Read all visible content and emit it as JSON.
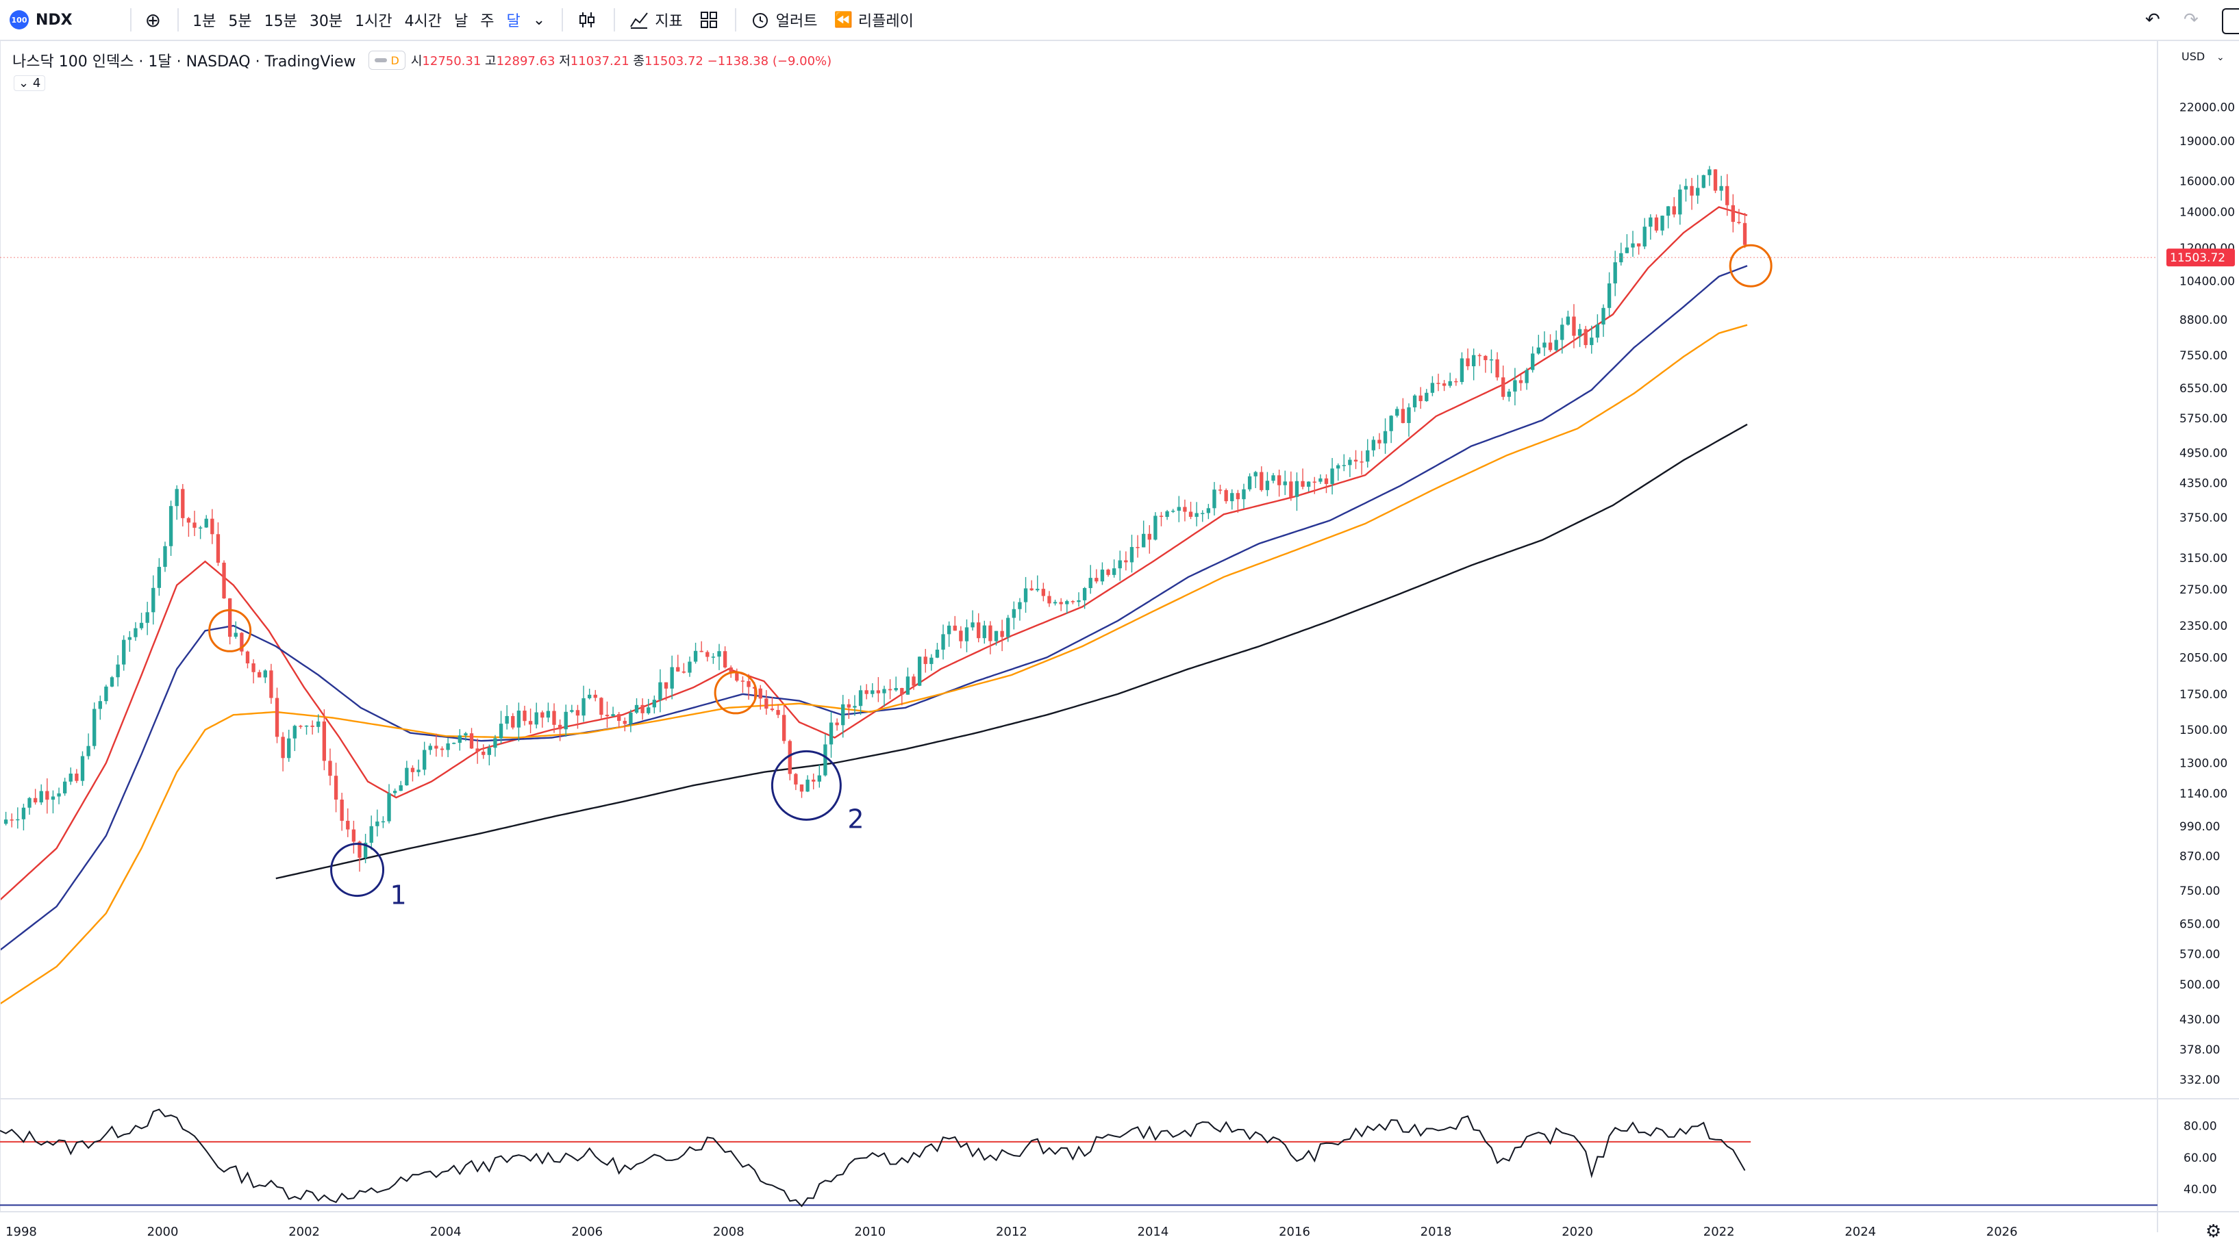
{
  "toolbar": {
    "symbol": "NDX",
    "symbol_badge": "100",
    "intervals": [
      "1분",
      "5분",
      "15분",
      "30분",
      "1시간",
      "4시간",
      "날",
      "주",
      "달"
    ],
    "active_interval": "달",
    "indicators_label": "지표",
    "alert_label": "얼러트",
    "replay_label": "리플레이"
  },
  "legend": {
    "title": "나스닥 100 인덱스 · 1달 · NASDAQ · TradingView",
    "open_label": "시",
    "open": "12750.31",
    "high_label": "고",
    "high": "12897.63",
    "low_label": "저",
    "low": "11037.21",
    "close_label": "종",
    "close": "11503.72",
    "change": "−1138.38 (−9.00%)",
    "badge": "D",
    "collapsed_count": "4"
  },
  "colors": {
    "up": "#26a69a",
    "down": "#ef5350",
    "ma_red": "#e53935",
    "ma_blue": "#283593",
    "ma_orange": "#ff9800",
    "ma_black": "#131722",
    "annot_orange": "#ef6c00",
    "annot_blue": "#1a237e"
  },
  "chart_data": {
    "type": "candlestick",
    "scale": "log",
    "currency": "USD",
    "price_ticks": [
      22000,
      19000,
      16000,
      14000,
      12000,
      10400,
      8800,
      7550,
      6550,
      5750,
      4950,
      4350,
      3750,
      3150,
      2750,
      2350,
      2050,
      1750,
      1500,
      1300,
      1140,
      990,
      870,
      750,
      650,
      570,
      500,
      430,
      378,
      332
    ],
    "price_tick_labels": [
      "22000.00",
      "19000.00",
      "16000.00",
      "14000.00",
      "12000.00",
      "10400.00",
      "8800.00",
      "7550.00",
      "6550.00",
      "5750.00",
      "4950.00",
      "4350.00",
      "3750.00",
      "3150.00",
      "2750.00",
      "2350.00",
      "2050.00",
      "1750.00",
      "1500.00",
      "1300.00",
      "1140.00",
      "990.00",
      "870.00",
      "750.00",
      "650.00",
      "570.00",
      "500.00",
      "430.00",
      "378.00",
      "332.00"
    ],
    "ylim": [
      310,
      26000
    ],
    "xlim": [
      1997.7,
      2028.2
    ],
    "x_ticks": [
      1998,
      2000,
      2002,
      2004,
      2006,
      2008,
      2010,
      2012,
      2014,
      2016,
      2018,
      2020,
      2022,
      2024,
      2026
    ],
    "last_price": 11503.72,
    "last_price_label": "11503.72",
    "close_anchors": [
      [
        1997.7,
        1000
      ],
      [
        1998.3,
        1150
      ],
      [
        1998.8,
        1200
      ],
      [
        1999.0,
        1550
      ],
      [
        1999.5,
        2200
      ],
      [
        1999.9,
        2700
      ],
      [
        2000.15,
        4300
      ],
      [
        2000.4,
        3600
      ],
      [
        2000.7,
        3600
      ],
      [
        2000.9,
        2400
      ],
      [
        2001.2,
        2000
      ],
      [
        2001.5,
        1900
      ],
      [
        2001.7,
        1300
      ],
      [
        2001.9,
        1600
      ],
      [
        2002.2,
        1500
      ],
      [
        2002.5,
        1050
      ],
      [
        2002.75,
        850
      ],
      [
        2003.0,
        1000
      ],
      [
        2003.5,
        1250
      ],
      [
        2004.0,
        1450
      ],
      [
        2004.6,
        1400
      ],
      [
        2005.0,
        1600
      ],
      [
        2005.6,
        1550
      ],
      [
        2006.0,
        1700
      ],
      [
        2006.5,
        1550
      ],
      [
        2007.0,
        1800
      ],
      [
        2007.8,
        2150
      ],
      [
        2008.3,
        1800
      ],
      [
        2008.7,
        1600
      ],
      [
        2008.9,
        1150
      ],
      [
        2009.2,
        1200
      ],
      [
        2009.5,
        1550
      ],
      [
        2010.0,
        1850
      ],
      [
        2010.5,
        1800
      ],
      [
        2011.0,
        2250
      ],
      [
        2011.6,
        2300
      ],
      [
        2011.8,
        2200
      ],
      [
        2012.2,
        2700
      ],
      [
        2012.8,
        2650
      ],
      [
        2013.5,
        3000
      ],
      [
        2014.0,
        3600
      ],
      [
        2014.7,
        4000
      ],
      [
        2015.5,
        4400
      ],
      [
        2016.1,
        4200
      ],
      [
        2016.6,
        4600
      ],
      [
        2017.0,
        5000
      ],
      [
        2017.7,
        6200
      ],
      [
        2018.4,
        7200
      ],
      [
        2018.8,
        7300
      ],
      [
        2018.98,
        6400
      ],
      [
        2019.4,
        7600
      ],
      [
        2019.9,
        8700
      ],
      [
        2020.15,
        7800
      ],
      [
        2020.4,
        10000
      ],
      [
        2020.7,
        12000
      ],
      [
        2021.0,
        13000
      ],
      [
        2021.5,
        15000
      ],
      [
        2021.9,
        16300
      ],
      [
        2022.1,
        14800
      ],
      [
        2022.3,
        12700
      ],
      [
        2022.4,
        11500
      ]
    ],
    "moving_averages": [
      {
        "key": "ma_red",
        "anchors": [
          [
            1997.7,
            720
          ],
          [
            1998.5,
            900
          ],
          [
            1999.2,
            1300
          ],
          [
            1999.7,
            1900
          ],
          [
            2000.2,
            2800
          ],
          [
            2000.6,
            3100
          ],
          [
            2001.0,
            2800
          ],
          [
            2001.5,
            2300
          ],
          [
            2002.0,
            1800
          ],
          [
            2002.5,
            1450
          ],
          [
            2002.9,
            1200
          ],
          [
            2003.3,
            1120
          ],
          [
            2003.8,
            1200
          ],
          [
            2004.5,
            1380
          ],
          [
            2005.5,
            1500
          ],
          [
            2006.5,
            1600
          ],
          [
            2007.5,
            1800
          ],
          [
            2008.0,
            1950
          ],
          [
            2008.5,
            1850
          ],
          [
            2009.0,
            1550
          ],
          [
            2009.5,
            1450
          ],
          [
            2010.0,
            1600
          ],
          [
            2011.0,
            1950
          ],
          [
            2012.0,
            2250
          ],
          [
            2013.0,
            2550
          ],
          [
            2014.0,
            3100
          ],
          [
            2015.0,
            3800
          ],
          [
            2016.0,
            4100
          ],
          [
            2017.0,
            4500
          ],
          [
            2018.0,
            5800
          ],
          [
            2019.0,
            6700
          ],
          [
            2019.8,
            7800
          ],
          [
            2020.5,
            9000
          ],
          [
            2021.0,
            11000
          ],
          [
            2021.5,
            12800
          ],
          [
            2022.0,
            14300
          ],
          [
            2022.4,
            13800
          ]
        ]
      },
      {
        "key": "ma_blue",
        "anchors": [
          [
            1997.7,
            580
          ],
          [
            1998.5,
            700
          ],
          [
            1999.2,
            950
          ],
          [
            1999.7,
            1350
          ],
          [
            2000.2,
            1950
          ],
          [
            2000.6,
            2300
          ],
          [
            2001.0,
            2350
          ],
          [
            2001.6,
            2150
          ],
          [
            2002.2,
            1900
          ],
          [
            2002.8,
            1650
          ],
          [
            2003.5,
            1480
          ],
          [
            2004.5,
            1430
          ],
          [
            2005.5,
            1450
          ],
          [
            2006.5,
            1520
          ],
          [
            2007.5,
            1650
          ],
          [
            2008.2,
            1750
          ],
          [
            2009.0,
            1700
          ],
          [
            2009.6,
            1600
          ],
          [
            2010.5,
            1650
          ],
          [
            2011.5,
            1850
          ],
          [
            2012.5,
            2050
          ],
          [
            2013.5,
            2400
          ],
          [
            2014.5,
            2900
          ],
          [
            2015.5,
            3350
          ],
          [
            2016.5,
            3700
          ],
          [
            2017.5,
            4300
          ],
          [
            2018.5,
            5100
          ],
          [
            2019.5,
            5700
          ],
          [
            2020.2,
            6500
          ],
          [
            2020.8,
            7800
          ],
          [
            2021.5,
            9300
          ],
          [
            2022.0,
            10600
          ],
          [
            2022.4,
            11100
          ]
        ]
      },
      {
        "key": "ma_orange",
        "anchors": [
          [
            1997.7,
            460
          ],
          [
            1998.5,
            540
          ],
          [
            1999.2,
            680
          ],
          [
            1999.7,
            900
          ],
          [
            2000.2,
            1250
          ],
          [
            2000.6,
            1500
          ],
          [
            2001.0,
            1600
          ],
          [
            2001.6,
            1620
          ],
          [
            2002.4,
            1580
          ],
          [
            2003.2,
            1520
          ],
          [
            2004.0,
            1460
          ],
          [
            2005.0,
            1450
          ],
          [
            2006.0,
            1480
          ],
          [
            2007.0,
            1560
          ],
          [
            2008.0,
            1650
          ],
          [
            2009.0,
            1680
          ],
          [
            2010.0,
            1620
          ],
          [
            2011.0,
            1750
          ],
          [
            2012.0,
            1900
          ],
          [
            2013.0,
            2150
          ],
          [
            2014.0,
            2500
          ],
          [
            2015.0,
            2900
          ],
          [
            2016.0,
            3250
          ],
          [
            2017.0,
            3650
          ],
          [
            2018.0,
            4250
          ],
          [
            2019.0,
            4900
          ],
          [
            2020.0,
            5500
          ],
          [
            2020.8,
            6400
          ],
          [
            2021.5,
            7500
          ],
          [
            2022.0,
            8300
          ],
          [
            2022.4,
            8600
          ]
        ]
      },
      {
        "key": "ma_black",
        "anchors": [
          [
            2001.6,
            790
          ],
          [
            2002.5,
            840
          ],
          [
            2003.5,
            900
          ],
          [
            2004.5,
            960
          ],
          [
            2005.5,
            1030
          ],
          [
            2006.5,
            1100
          ],
          [
            2007.5,
            1180
          ],
          [
            2008.5,
            1250
          ],
          [
            2009.5,
            1300
          ],
          [
            2010.5,
            1380
          ],
          [
            2011.5,
            1480
          ],
          [
            2012.5,
            1600
          ],
          [
            2013.5,
            1750
          ],
          [
            2014.5,
            1950
          ],
          [
            2015.5,
            2150
          ],
          [
            2016.5,
            2400
          ],
          [
            2017.5,
            2700
          ],
          [
            2018.5,
            3050
          ],
          [
            2019.5,
            3400
          ],
          [
            2020.5,
            3950
          ],
          [
            2021.5,
            4800
          ],
          [
            2022.4,
            5600
          ]
        ]
      }
    ],
    "annotations": [
      {
        "type": "circle",
        "color_key": "annot_orange",
        "x": 2000.95,
        "y": 2300
      },
      {
        "type": "circle",
        "color_key": "annot_orange",
        "x": 2008.1,
        "y": 1760
      },
      {
        "type": "circle",
        "color_key": "annot_orange",
        "x": 2022.45,
        "y": 11100
      },
      {
        "type": "circle",
        "color_key": "annot_blue",
        "x": 2002.75,
        "y": 820,
        "label": "1"
      },
      {
        "type": "circle",
        "color_key": "annot_blue",
        "x": 2009.1,
        "y": 1180,
        "label": "2"
      }
    ],
    "rsi": {
      "ticks": [
        80,
        60,
        40
      ],
      "tick_labels": [
        "80.00",
        "60.00",
        "40.00"
      ],
      "ylim": [
        28,
        95
      ],
      "upper_band": 70,
      "lower_band": 30,
      "anchors": [
        [
          1997.7,
          75
        ],
        [
          1998.3,
          72
        ],
        [
          1998.7,
          66
        ],
        [
          1999.2,
          74
        ],
        [
          1999.6,
          80
        ],
        [
          2000.0,
          88
        ],
        [
          2000.4,
          75
        ],
        [
          2000.8,
          55
        ],
        [
          2001.3,
          45
        ],
        [
          2001.8,
          38
        ],
        [
          2002.3,
          36
        ],
        [
          2002.7,
          34
        ],
        [
          2003.2,
          42
        ],
        [
          2003.8,
          50
        ],
        [
          2004.5,
          55
        ],
        [
          2005.2,
          60
        ],
        [
          2006.0,
          62
        ],
        [
          2006.6,
          52
        ],
        [
          2007.2,
          62
        ],
        [
          2007.8,
          72
        ],
        [
          2008.3,
          54
        ],
        [
          2008.8,
          38
        ],
        [
          2009.0,
          30
        ],
        [
          2009.3,
          42
        ],
        [
          2009.9,
          64
        ],
        [
          2010.5,
          58
        ],
        [
          2011.2,
          72
        ],
        [
          2011.7,
          58
        ],
        [
          2012.3,
          68
        ],
        [
          2012.9,
          62
        ],
        [
          2013.6,
          78
        ],
        [
          2014.3,
          74
        ],
        [
          2014.9,
          80
        ],
        [
          2015.6,
          74
        ],
        [
          2016.1,
          58
        ],
        [
          2016.6,
          70
        ],
        [
          2017.2,
          80
        ],
        [
          2017.8,
          78
        ],
        [
          2018.5,
          84
        ],
        [
          2018.9,
          58
        ],
        [
          2019.4,
          72
        ],
        [
          2020.0,
          76
        ],
        [
          2020.2,
          52
        ],
        [
          2020.6,
          80
        ],
        [
          2021.2,
          76
        ],
        [
          2021.8,
          78
        ],
        [
          2022.1,
          68
        ],
        [
          2022.4,
          50
        ]
      ]
    }
  }
}
